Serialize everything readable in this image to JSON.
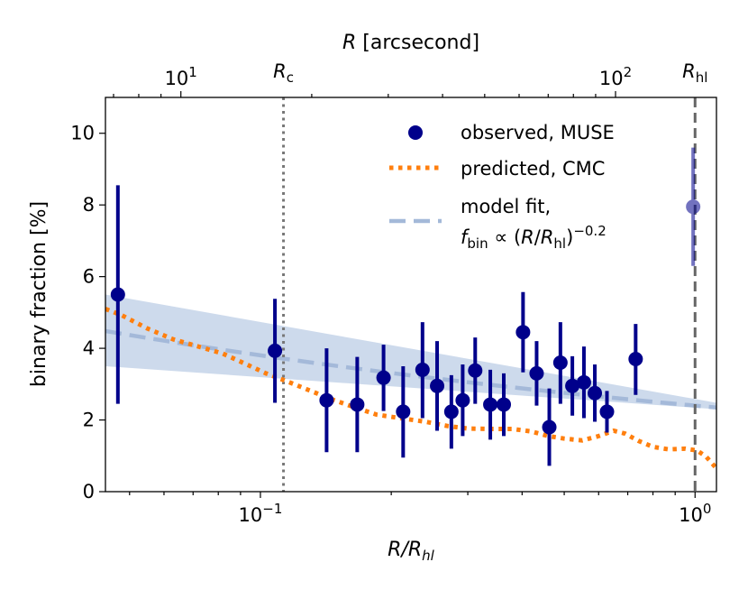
{
  "chart_data": {
    "type": "scatter",
    "x_scale": "log",
    "xlabel": "R/R_hl",
    "xlabel_main": "R/R",
    "xlabel_sub": "hl",
    "ylabel": "binary fraction [%]",
    "xlim": [
      0.044,
      1.12
    ],
    "ylim": [
      0,
      11
    ],
    "top_axis": {
      "label": "R [arcsecond]",
      "label_italic": "R",
      "label_rest": " [arcsecond]",
      "ticks": [
        {
          "value": 10,
          "base": "10",
          "exp": "1"
        },
        {
          "value": 100,
          "base": "10",
          "exp": "2"
        }
      ],
      "arcsec_per_unit_x": 152.4
    },
    "x_ticks": [
      {
        "value": 0.1,
        "base": "10",
        "exp": "−1"
      },
      {
        "value": 1.0,
        "base": "10",
        "exp": "0"
      }
    ],
    "y_ticks": [
      0,
      2,
      4,
      6,
      8,
      10
    ],
    "reference_lines": [
      {
        "name": "Rc",
        "x": 0.113,
        "style": "dotted",
        "label_main": "R",
        "label_sub": "c"
      },
      {
        "name": "Rhl",
        "x": 1.0,
        "style": "dashed",
        "label_main": "R",
        "label_sub": "hl"
      }
    ],
    "series": [
      {
        "name": "observed, MUSE",
        "kind": "errorbar",
        "color": "#00008b",
        "points": [
          {
            "x": 0.047,
            "y": 5.5,
            "lo": 2.45,
            "hi": 8.55
          },
          {
            "x": 0.108,
            "y": 3.93,
            "lo": 2.48,
            "hi": 5.38
          },
          {
            "x": 0.142,
            "y": 2.55,
            "lo": 1.1,
            "hi": 4.0
          },
          {
            "x": 0.167,
            "y": 2.43,
            "lo": 1.1,
            "hi": 3.76
          },
          {
            "x": 0.192,
            "y": 3.18,
            "lo": 2.25,
            "hi": 4.1
          },
          {
            "x": 0.213,
            "y": 2.23,
            "lo": 0.95,
            "hi": 3.5
          },
          {
            "x": 0.236,
            "y": 3.4,
            "lo": 2.05,
            "hi": 4.73
          },
          {
            "x": 0.255,
            "y": 2.95,
            "lo": 1.7,
            "hi": 4.2
          },
          {
            "x": 0.275,
            "y": 2.23,
            "lo": 1.2,
            "hi": 3.25
          },
          {
            "x": 0.292,
            "y": 2.55,
            "lo": 1.55,
            "hi": 3.55
          },
          {
            "x": 0.312,
            "y": 3.38,
            "lo": 2.45,
            "hi": 4.3
          },
          {
            "x": 0.338,
            "y": 2.43,
            "lo": 1.45,
            "hi": 3.4
          },
          {
            "x": 0.363,
            "y": 2.43,
            "lo": 1.55,
            "hi": 3.3
          },
          {
            "x": 0.402,
            "y": 4.45,
            "lo": 3.33,
            "hi": 5.57
          },
          {
            "x": 0.432,
            "y": 3.3,
            "lo": 2.4,
            "hi": 4.2
          },
          {
            "x": 0.462,
            "y": 1.8,
            "lo": 0.72,
            "hi": 2.88
          },
          {
            "x": 0.49,
            "y": 3.6,
            "lo": 2.45,
            "hi": 4.73
          },
          {
            "x": 0.522,
            "y": 2.95,
            "lo": 2.12,
            "hi": 3.78
          },
          {
            "x": 0.555,
            "y": 3.05,
            "lo": 2.05,
            "hi": 4.05
          },
          {
            "x": 0.588,
            "y": 2.75,
            "lo": 1.95,
            "hi": 3.55
          },
          {
            "x": 0.627,
            "y": 2.23,
            "lo": 1.65,
            "hi": 2.81
          },
          {
            "x": 0.73,
            "y": 3.7,
            "lo": 2.7,
            "hi": 4.68
          },
          {
            "x": 0.99,
            "y": 7.95,
            "lo": 6.3,
            "hi": 9.6,
            "faded": true
          }
        ]
      },
      {
        "name": "predicted, CMC",
        "kind": "line",
        "style": "dotted",
        "color": "#ff7f0e",
        "points": [
          {
            "x": 0.044,
            "y": 5.1
          },
          {
            "x": 0.048,
            "y": 4.92
          },
          {
            "x": 0.055,
            "y": 4.55
          },
          {
            "x": 0.063,
            "y": 4.25
          },
          {
            "x": 0.072,
            "y": 4.05
          },
          {
            "x": 0.082,
            "y": 3.85
          },
          {
            "x": 0.093,
            "y": 3.55
          },
          {
            "x": 0.103,
            "y": 3.3
          },
          {
            "x": 0.115,
            "y": 3.08
          },
          {
            "x": 0.13,
            "y": 2.82
          },
          {
            "x": 0.148,
            "y": 2.55
          },
          {
            "x": 0.165,
            "y": 2.35
          },
          {
            "x": 0.185,
            "y": 2.15
          },
          {
            "x": 0.21,
            "y": 2.05
          },
          {
            "x": 0.24,
            "y": 1.95
          },
          {
            "x": 0.27,
            "y": 1.83
          },
          {
            "x": 0.3,
            "y": 1.76
          },
          {
            "x": 0.34,
            "y": 1.75
          },
          {
            "x": 0.38,
            "y": 1.75
          },
          {
            "x": 0.42,
            "y": 1.68
          },
          {
            "x": 0.46,
            "y": 1.55
          },
          {
            "x": 0.5,
            "y": 1.48
          },
          {
            "x": 0.55,
            "y": 1.43
          },
          {
            "x": 0.6,
            "y": 1.55
          },
          {
            "x": 0.65,
            "y": 1.7
          },
          {
            "x": 0.69,
            "y": 1.62
          },
          {
            "x": 0.74,
            "y": 1.42
          },
          {
            "x": 0.8,
            "y": 1.25
          },
          {
            "x": 0.87,
            "y": 1.18
          },
          {
            "x": 0.95,
            "y": 1.2
          },
          {
            "x": 1.01,
            "y": 1.15
          },
          {
            "x": 1.06,
            "y": 0.98
          },
          {
            "x": 1.12,
            "y": 0.65
          }
        ]
      },
      {
        "name": "model fit, f_bin ∝ (R/R_hl)^−0.2",
        "kind": "line",
        "style": "dashed",
        "color": "#a4b9d9",
        "amplitude": 2.4,
        "exponent": -0.2,
        "band": {
          "color": "#bccee6",
          "upper": [
            {
              "x": 0.044,
              "y": 5.5
            },
            {
              "x": 1.12,
              "y": 2.48
            }
          ],
          "lower": [
            {
              "x": 0.044,
              "y": 3.5
            },
            {
              "x": 1.12,
              "y": 2.3
            }
          ]
        }
      }
    ],
    "legend": {
      "position": "top-right",
      "entries": [
        {
          "text": "observed, MUSE"
        },
        {
          "text": "predicted, CMC"
        },
        {
          "text": "model fit,",
          "formula_f": "f",
          "formula_sub": "bin",
          "formula_mid": " ∝ (",
          "formula_R": "R",
          "formula_slash": "/",
          "formula_R2": "R",
          "formula_sub2": "hl",
          "formula_close": ")",
          "formula_sup": "−0.2"
        }
      ]
    }
  }
}
